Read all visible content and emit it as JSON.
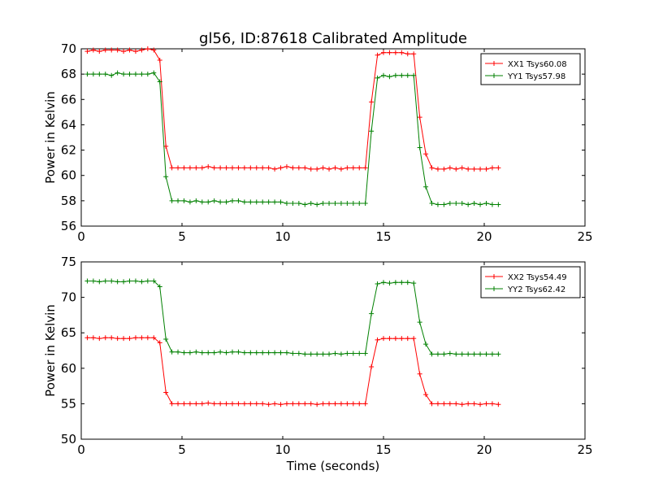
{
  "figure": {
    "title": "gl56, ID:87618 Calibrated Amplitude"
  },
  "chart_data": [
    {
      "type": "line",
      "title": "gl56, ID:87618 Calibrated Amplitude",
      "xlabel": "",
      "ylabel": "Power in Kelvin",
      "xlim": [
        0,
        25
      ],
      "ylim": [
        56,
        70
      ],
      "xticks": [
        "0",
        "5",
        "10",
        "15",
        "20",
        "25"
      ],
      "yticks": [
        "56",
        "58",
        "60",
        "62",
        "64",
        "66",
        "68",
        "70"
      ],
      "grid": false,
      "legend_position": "top-right",
      "x": [
        0.3,
        0.6,
        0.9,
        1.2,
        1.5,
        1.8,
        2.1,
        2.4,
        2.7,
        3.0,
        3.3,
        3.6,
        3.9,
        4.2,
        4.5,
        4.8,
        5.1,
        5.4,
        5.7,
        6.0,
        6.3,
        6.6,
        6.9,
        7.2,
        7.5,
        7.8,
        8.1,
        8.4,
        8.7,
        9.0,
        9.3,
        9.6,
        9.9,
        10.2,
        10.5,
        10.8,
        11.1,
        11.4,
        11.7,
        12.0,
        12.3,
        12.6,
        12.9,
        13.2,
        13.5,
        13.8,
        14.1,
        14.4,
        14.7,
        15.0,
        15.3,
        15.6,
        15.9,
        16.2,
        16.5,
        16.8,
        17.1,
        17.4,
        17.7,
        18.0,
        18.3,
        18.6,
        18.9,
        19.2,
        19.5,
        19.8,
        20.1,
        20.4,
        20.7
      ],
      "series": [
        {
          "name": "XX1 Tsys60.08",
          "color": "#ff0000",
          "values": [
            69.8,
            69.9,
            69.8,
            69.9,
            69.9,
            69.9,
            69.8,
            69.9,
            69.8,
            69.9,
            70.0,
            69.9,
            69.1,
            62.3,
            60.6,
            60.6,
            60.6,
            60.6,
            60.6,
            60.6,
            60.7,
            60.6,
            60.6,
            60.6,
            60.6,
            60.6,
            60.6,
            60.6,
            60.6,
            60.6,
            60.6,
            60.5,
            60.6,
            60.7,
            60.6,
            60.6,
            60.6,
            60.5,
            60.5,
            60.6,
            60.5,
            60.6,
            60.5,
            60.6,
            60.6,
            60.6,
            60.6,
            65.8,
            69.5,
            69.7,
            69.7,
            69.7,
            69.7,
            69.6,
            69.6,
            64.6,
            61.7,
            60.6,
            60.5,
            60.5,
            60.6,
            60.5,
            60.6,
            60.5,
            60.5,
            60.5,
            60.5,
            60.6,
            60.6
          ]
        },
        {
          "name": "YY1 Tsys57.98",
          "color": "#008000",
          "values": [
            68.0,
            68.0,
            68.0,
            68.0,
            67.9,
            68.1,
            68.0,
            68.0,
            68.0,
            68.0,
            68.0,
            68.1,
            67.4,
            59.9,
            58.0,
            58.0,
            58.0,
            57.9,
            58.0,
            57.9,
            57.9,
            58.0,
            57.9,
            57.9,
            58.0,
            58.0,
            57.9,
            57.9,
            57.9,
            57.9,
            57.9,
            57.9,
            57.9,
            57.8,
            57.8,
            57.8,
            57.7,
            57.8,
            57.7,
            57.8,
            57.8,
            57.8,
            57.8,
            57.8,
            57.8,
            57.8,
            57.8,
            63.5,
            67.7,
            67.9,
            67.8,
            67.9,
            67.9,
            67.9,
            67.9,
            62.2,
            59.1,
            57.8,
            57.7,
            57.7,
            57.8,
            57.8,
            57.8,
            57.7,
            57.8,
            57.7,
            57.8,
            57.7,
            57.7
          ]
        }
      ]
    },
    {
      "type": "line",
      "title": "",
      "xlabel": "Time (seconds)",
      "ylabel": "Power in Kelvin",
      "xlim": [
        0,
        25
      ],
      "ylim": [
        50,
        75
      ],
      "xticks": [
        "0",
        "5",
        "10",
        "15",
        "20",
        "25"
      ],
      "yticks": [
        "50",
        "55",
        "60",
        "65",
        "70",
        "75"
      ],
      "grid": false,
      "legend_position": "top-right",
      "x": [
        0.3,
        0.6,
        0.9,
        1.2,
        1.5,
        1.8,
        2.1,
        2.4,
        2.7,
        3.0,
        3.3,
        3.6,
        3.9,
        4.2,
        4.5,
        4.8,
        5.1,
        5.4,
        5.7,
        6.0,
        6.3,
        6.6,
        6.9,
        7.2,
        7.5,
        7.8,
        8.1,
        8.4,
        8.7,
        9.0,
        9.3,
        9.6,
        9.9,
        10.2,
        10.5,
        10.8,
        11.1,
        11.4,
        11.7,
        12.0,
        12.3,
        12.6,
        12.9,
        13.2,
        13.5,
        13.8,
        14.1,
        14.4,
        14.7,
        15.0,
        15.3,
        15.6,
        15.9,
        16.2,
        16.5,
        16.8,
        17.1,
        17.4,
        17.7,
        18.0,
        18.3,
        18.6,
        18.9,
        19.2,
        19.5,
        19.8,
        20.1,
        20.4,
        20.7
      ],
      "series": [
        {
          "name": "XX2 Tsys54.49",
          "color": "#ff0000",
          "values": [
            64.3,
            64.3,
            64.2,
            64.3,
            64.3,
            64.2,
            64.2,
            64.2,
            64.3,
            64.3,
            64.3,
            64.3,
            63.6,
            56.6,
            55.0,
            55.0,
            55.0,
            55.0,
            55.0,
            55.0,
            55.1,
            55.0,
            55.0,
            55.0,
            55.0,
            55.0,
            55.0,
            55.0,
            55.0,
            55.0,
            54.9,
            55.0,
            54.9,
            55.0,
            55.0,
            55.0,
            55.0,
            55.0,
            54.9,
            55.0,
            55.0,
            55.0,
            55.0,
            55.0,
            55.0,
            55.0,
            55.0,
            60.2,
            64.0,
            64.2,
            64.2,
            64.2,
            64.2,
            64.2,
            64.2,
            59.2,
            56.3,
            55.0,
            55.0,
            55.0,
            55.0,
            55.0,
            54.9,
            55.0,
            55.0,
            54.9,
            55.0,
            55.0,
            54.9
          ]
        },
        {
          "name": "YY2 Tsys62.42",
          "color": "#008000",
          "values": [
            72.3,
            72.3,
            72.2,
            72.3,
            72.3,
            72.2,
            72.2,
            72.3,
            72.3,
            72.2,
            72.3,
            72.3,
            71.5,
            64.1,
            62.3,
            62.3,
            62.2,
            62.2,
            62.3,
            62.2,
            62.2,
            62.2,
            62.3,
            62.2,
            62.3,
            62.3,
            62.2,
            62.2,
            62.2,
            62.2,
            62.2,
            62.2,
            62.2,
            62.2,
            62.1,
            62.1,
            62.0,
            62.0,
            62.0,
            62.0,
            62.0,
            62.1,
            62.0,
            62.1,
            62.1,
            62.1,
            62.1,
            67.7,
            71.9,
            72.1,
            72.0,
            72.1,
            72.1,
            72.1,
            72.0,
            66.5,
            63.4,
            62.0,
            62.0,
            62.0,
            62.1,
            62.0,
            62.0,
            62.0,
            62.0,
            62.0,
            62.0,
            62.0,
            62.0
          ]
        }
      ]
    }
  ]
}
